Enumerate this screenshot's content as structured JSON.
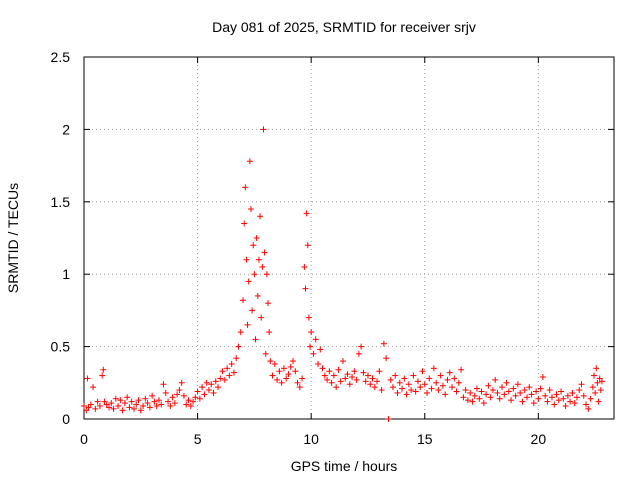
{
  "chart_data": {
    "type": "scatter",
    "title": "Day 081 of 2025, SRMTID for receiver srjv",
    "xlabel": "GPS time / hours",
    "ylabel": "SRMTID / TECUs",
    "xlim": [
      0,
      23.33
    ],
    "ylim": [
      0,
      2.5
    ],
    "xticks": [
      0,
      5,
      10,
      15,
      20
    ],
    "xtick_labels": [
      "0",
      "5",
      "10",
      "15",
      "20"
    ],
    "yticks": [
      0,
      0.5,
      1,
      1.5,
      2,
      2.5
    ],
    "ytick_labels": [
      "0",
      "0.5",
      "1",
      "1.5",
      "2",
      "2.5"
    ],
    "grid": true,
    "marker": "+",
    "marker_color": "#ff0000",
    "series": [
      {
        "name": "SRMTID",
        "points": [
          [
            0.0,
            0.09
          ],
          [
            0.1,
            0.06
          ],
          [
            0.15,
            0.28
          ],
          [
            0.2,
            0.08
          ],
          [
            0.3,
            0.1
          ],
          [
            0.4,
            0.22
          ],
          [
            0.5,
            0.07
          ],
          [
            0.6,
            0.12
          ],
          [
            0.7,
            0.09
          ],
          [
            0.8,
            0.3
          ],
          [
            0.85,
            0.34
          ],
          [
            0.9,
            0.12
          ],
          [
            1.0,
            0.1
          ],
          [
            1.1,
            0.08
          ],
          [
            1.2,
            0.11
          ],
          [
            1.3,
            0.07
          ],
          [
            1.4,
            0.14
          ],
          [
            1.5,
            0.09
          ],
          [
            1.6,
            0.13
          ],
          [
            1.7,
            0.06
          ],
          [
            1.8,
            0.11
          ],
          [
            1.9,
            0.15
          ],
          [
            2.0,
            0.08
          ],
          [
            2.1,
            0.12
          ],
          [
            2.2,
            0.07
          ],
          [
            2.3,
            0.1
          ],
          [
            2.4,
            0.13
          ],
          [
            2.5,
            0.06
          ],
          [
            2.6,
            0.09
          ],
          [
            2.7,
            0.14
          ],
          [
            2.8,
            0.11
          ],
          [
            2.9,
            0.08
          ],
          [
            3.0,
            0.16
          ],
          [
            3.1,
            0.12
          ],
          [
            3.2,
            0.09
          ],
          [
            3.3,
            0.13
          ],
          [
            3.4,
            0.1
          ],
          [
            3.5,
            0.24
          ],
          [
            3.6,
            0.18
          ],
          [
            3.7,
            0.12
          ],
          [
            3.8,
            0.09
          ],
          [
            3.9,
            0.15
          ],
          [
            4.0,
            0.11
          ],
          [
            4.1,
            0.17
          ],
          [
            4.2,
            0.2
          ],
          [
            4.3,
            0.25
          ],
          [
            4.4,
            0.16
          ],
          [
            4.5,
            0.1
          ],
          [
            4.6,
            0.13
          ],
          [
            4.7,
            0.09
          ],
          [
            4.8,
            0.12
          ],
          [
            4.9,
            0.15
          ],
          [
            5.0,
            0.19
          ],
          [
            5.1,
            0.14
          ],
          [
            5.2,
            0.22
          ],
          [
            5.3,
            0.17
          ],
          [
            5.4,
            0.25
          ],
          [
            5.5,
            0.2
          ],
          [
            5.6,
            0.24
          ],
          [
            5.7,
            0.18
          ],
          [
            5.8,
            0.26
          ],
          [
            5.9,
            0.22
          ],
          [
            6.0,
            0.28
          ],
          [
            6.1,
            0.33
          ],
          [
            6.2,
            0.27
          ],
          [
            6.3,
            0.35
          ],
          [
            6.4,
            0.3
          ],
          [
            6.5,
            0.38
          ],
          [
            6.6,
            0.32
          ],
          [
            6.7,
            0.42
          ],
          [
            6.8,
            0.5
          ],
          [
            6.9,
            0.6
          ],
          [
            7.0,
            0.82
          ],
          [
            7.05,
            1.35
          ],
          [
            7.1,
            1.6
          ],
          [
            7.15,
            1.1
          ],
          [
            7.2,
            0.65
          ],
          [
            7.25,
            0.95
          ],
          [
            7.3,
            1.78
          ],
          [
            7.35,
            1.45
          ],
          [
            7.4,
            0.75
          ],
          [
            7.45,
            1.2
          ],
          [
            7.5,
            1.0
          ],
          [
            7.55,
            0.55
          ],
          [
            7.6,
            1.25
          ],
          [
            7.65,
            0.85
          ],
          [
            7.7,
            1.1
          ],
          [
            7.75,
            1.4
          ],
          [
            7.8,
            0.7
          ],
          [
            7.85,
            1.05
          ],
          [
            7.9,
            2.0
          ],
          [
            7.95,
            1.15
          ],
          [
            8.0,
            0.45
          ],
          [
            8.05,
            1.0
          ],
          [
            8.1,
            0.8
          ],
          [
            8.15,
            0.6
          ],
          [
            8.2,
            0.4
          ],
          [
            8.3,
            0.3
          ],
          [
            8.4,
            0.38
          ],
          [
            8.5,
            0.27
          ],
          [
            8.6,
            0.33
          ],
          [
            8.7,
            0.25
          ],
          [
            8.8,
            0.35
          ],
          [
            8.9,
            0.28
          ],
          [
            9.0,
            0.31
          ],
          [
            9.1,
            0.36
          ],
          [
            9.2,
            0.4
          ],
          [
            9.3,
            0.33
          ],
          [
            9.4,
            0.25
          ],
          [
            9.5,
            0.22
          ],
          [
            9.6,
            0.28
          ],
          [
            9.7,
            1.05
          ],
          [
            9.75,
            0.9
          ],
          [
            9.8,
            1.42
          ],
          [
            9.85,
            1.2
          ],
          [
            9.9,
            0.7
          ],
          [
            9.95,
            0.5
          ],
          [
            10.0,
            0.6
          ],
          [
            10.1,
            0.45
          ],
          [
            10.2,
            0.55
          ],
          [
            10.3,
            0.38
          ],
          [
            10.4,
            0.48
          ],
          [
            10.5,
            0.35
          ],
          [
            10.6,
            0.3
          ],
          [
            10.7,
            0.27
          ],
          [
            10.8,
            0.33
          ],
          [
            10.9,
            0.25
          ],
          [
            11.0,
            0.3
          ],
          [
            11.1,
            0.22
          ],
          [
            11.2,
            0.34
          ],
          [
            11.3,
            0.26
          ],
          [
            11.4,
            0.4
          ],
          [
            11.5,
            0.28
          ],
          [
            11.6,
            0.31
          ],
          [
            11.7,
            0.24
          ],
          [
            11.8,
            0.29
          ],
          [
            11.9,
            0.33
          ],
          [
            12.0,
            0.27
          ],
          [
            12.1,
            0.45
          ],
          [
            12.2,
            0.5
          ],
          [
            12.3,
            0.32
          ],
          [
            12.4,
            0.26
          ],
          [
            12.5,
            0.3
          ],
          [
            12.6,
            0.24
          ],
          [
            12.7,
            0.28
          ],
          [
            12.8,
            0.22
          ],
          [
            12.9,
            0.26
          ],
          [
            13.0,
            0.33
          ],
          [
            13.1,
            0.2
          ],
          [
            13.2,
            0.52
          ],
          [
            13.3,
            0.42
          ],
          [
            13.4,
            0.0
          ],
          [
            13.5,
            0.27
          ],
          [
            13.6,
            0.22
          ],
          [
            13.7,
            0.3
          ],
          [
            13.8,
            0.18
          ],
          [
            13.9,
            0.25
          ],
          [
            14.0,
            0.21
          ],
          [
            14.1,
            0.28
          ],
          [
            14.2,
            0.17
          ],
          [
            14.3,
            0.24
          ],
          [
            14.4,
            0.2
          ],
          [
            14.5,
            0.3
          ],
          [
            14.6,
            0.19
          ],
          [
            14.7,
            0.26
          ],
          [
            14.8,
            0.22
          ],
          [
            14.9,
            0.33
          ],
          [
            15.0,
            0.24
          ],
          [
            15.1,
            0.18
          ],
          [
            15.2,
            0.28
          ],
          [
            15.3,
            0.21
          ],
          [
            15.4,
            0.35
          ],
          [
            15.5,
            0.25
          ],
          [
            15.6,
            0.2
          ],
          [
            15.7,
            0.3
          ],
          [
            15.8,
            0.23
          ],
          [
            15.9,
            0.17
          ],
          [
            16.0,
            0.27
          ],
          [
            16.1,
            0.32
          ],
          [
            16.2,
            0.22
          ],
          [
            16.3,
            0.28
          ],
          [
            16.4,
            0.19
          ],
          [
            16.5,
            0.25
          ],
          [
            16.6,
            0.34
          ],
          [
            16.7,
            0.15
          ],
          [
            16.8,
            0.2
          ],
          [
            16.9,
            0.13
          ],
          [
            17.0,
            0.18
          ],
          [
            17.1,
            0.12
          ],
          [
            17.2,
            0.16
          ],
          [
            17.3,
            0.21
          ],
          [
            17.4,
            0.14
          ],
          [
            17.5,
            0.19
          ],
          [
            17.6,
            0.11
          ],
          [
            17.7,
            0.17
          ],
          [
            17.8,
            0.23
          ],
          [
            17.9,
            0.15
          ],
          [
            18.0,
            0.2
          ],
          [
            18.1,
            0.27
          ],
          [
            18.2,
            0.18
          ],
          [
            18.3,
            0.14
          ],
          [
            18.4,
            0.22
          ],
          [
            18.5,
            0.17
          ],
          [
            18.6,
            0.25
          ],
          [
            18.7,
            0.19
          ],
          [
            18.8,
            0.13
          ],
          [
            18.9,
            0.21
          ],
          [
            19.0,
            0.16
          ],
          [
            19.1,
            0.24
          ],
          [
            19.2,
            0.18
          ],
          [
            19.3,
            0.12
          ],
          [
            19.4,
            0.2
          ],
          [
            19.5,
            0.15
          ],
          [
            19.6,
            0.22
          ],
          [
            19.7,
            0.17
          ],
          [
            19.8,
            0.11
          ],
          [
            19.9,
            0.19
          ],
          [
            20.0,
            0.14
          ],
          [
            20.1,
            0.21
          ],
          [
            20.2,
            0.29
          ],
          [
            20.3,
            0.16
          ],
          [
            20.4,
            0.12
          ],
          [
            20.5,
            0.2
          ],
          [
            20.6,
            0.15
          ],
          [
            20.7,
            0.1
          ],
          [
            20.8,
            0.17
          ],
          [
            20.9,
            0.13
          ],
          [
            21.0,
            0.19
          ],
          [
            21.1,
            0.14
          ],
          [
            21.2,
            0.09
          ],
          [
            21.3,
            0.16
          ],
          [
            21.4,
            0.12
          ],
          [
            21.5,
            0.18
          ],
          [
            21.6,
            0.11
          ],
          [
            21.7,
            0.15
          ],
          [
            21.8,
            0.2
          ],
          [
            21.9,
            0.24
          ],
          [
            22.0,
            0.16
          ],
          [
            22.1,
            0.1
          ],
          [
            22.2,
            0.07
          ],
          [
            22.3,
            0.14
          ],
          [
            22.4,
            0.22
          ],
          [
            22.45,
            0.3
          ],
          [
            22.5,
            0.18
          ],
          [
            22.55,
            0.35
          ],
          [
            22.6,
            0.25
          ],
          [
            22.65,
            0.12
          ],
          [
            22.7,
            0.28
          ],
          [
            22.75,
            0.2
          ],
          [
            22.8,
            0.26
          ]
        ]
      }
    ]
  }
}
